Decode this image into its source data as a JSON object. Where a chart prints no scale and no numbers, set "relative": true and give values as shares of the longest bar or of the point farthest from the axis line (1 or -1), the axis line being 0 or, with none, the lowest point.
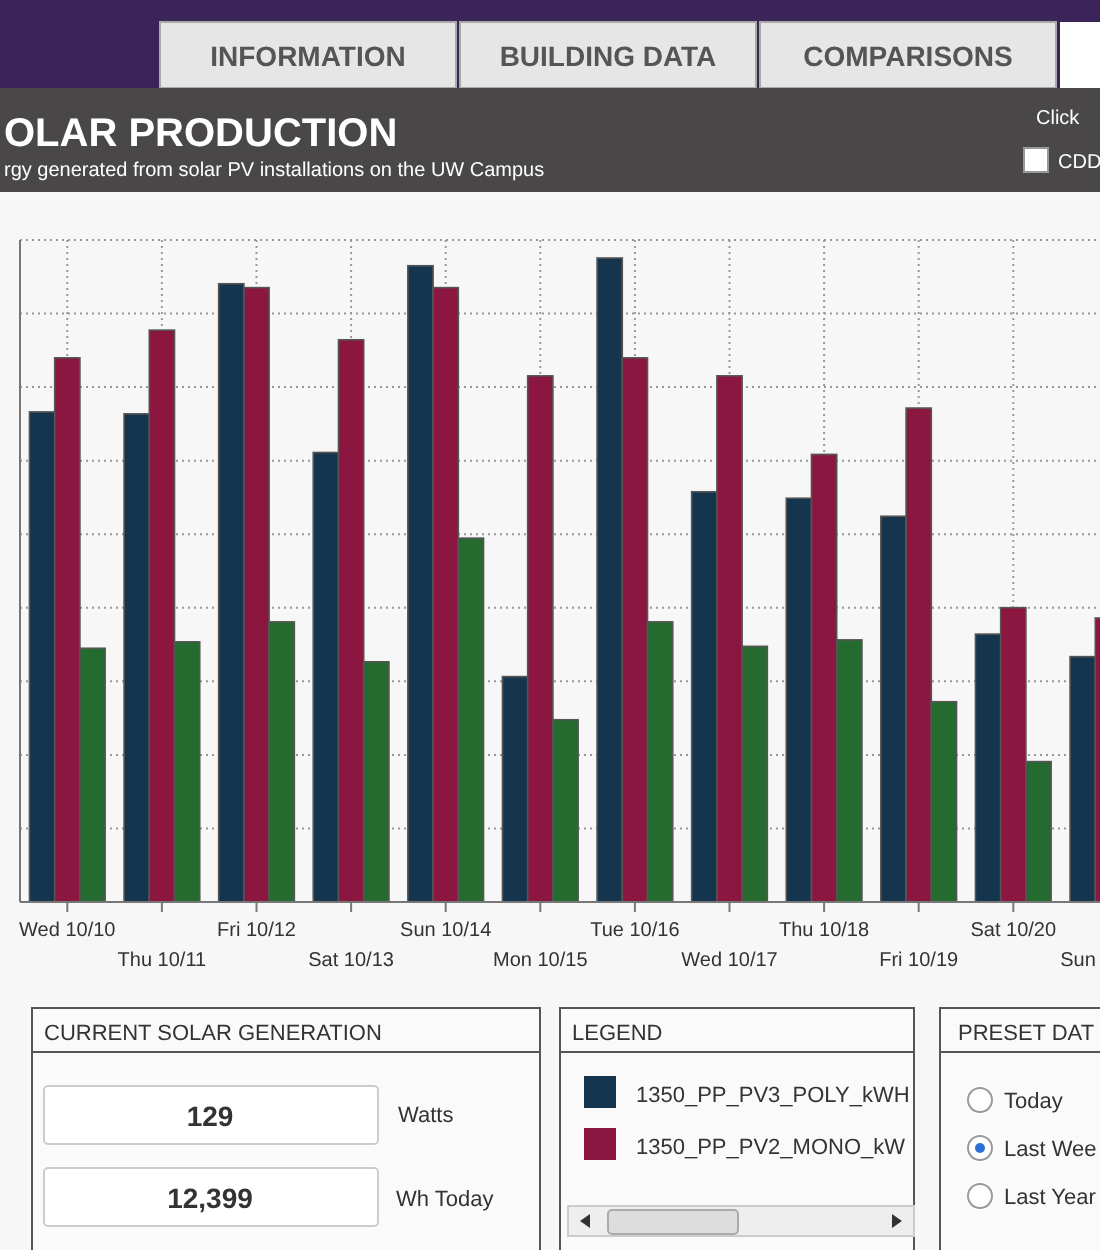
{
  "chart_data": {
    "type": "bar",
    "title": "OLAR PRODUCTION",
    "subtitle": "rgy generated from solar PV installations on the UW Campus",
    "relative": true,
    "grid": true,
    "legend": "bottom",
    "categories": [
      "Wed 10/10",
      "Thu 10/11",
      "Fri 10/12",
      "Sat 10/13",
      "Sun 10/14",
      "Mon 10/15",
      "Tue 10/16",
      "Wed 10/17",
      "Thu 10/18",
      "Fri 10/19",
      "Sat 10/20",
      "Sun"
    ],
    "series": [
      {
        "name": "1350_PP_PV3_POLY_kWH",
        "color": "#15354f",
        "values": [
          0.761,
          0.758,
          0.96,
          0.698,
          0.988,
          0.35,
          1,
          0.637,
          0.627,
          0.599,
          0.416,
          0.381
        ]
      },
      {
        "name": "1350_PP_PV2_MONO_kW",
        "color": "#8b1640",
        "values": [
          0.845,
          0.888,
          0.954,
          0.873,
          0.954,
          0.817,
          0.845,
          0.817,
          0.695,
          0.767,
          0.457,
          0.441
        ]
      },
      {
        "color": "#256b2f",
        "values": [
          0.394,
          0.404,
          0.435,
          0.373,
          0.565,
          0.283,
          0.435,
          0.397,
          0.407,
          0.311,
          0.218,
          null
        ]
      }
    ],
    "annotations": [
      "INFORMATION",
      "BUILDING DATA",
      "COMPARISONS",
      "Click",
      "CDD",
      "CURRENT SOLAR GENERATION",
      "129",
      "Watts",
      "12,399",
      "Wh Today",
      "LEGEND",
      "PRESET DAT",
      "Today",
      "Last Wee",
      "Last Year"
    ]
  }
}
